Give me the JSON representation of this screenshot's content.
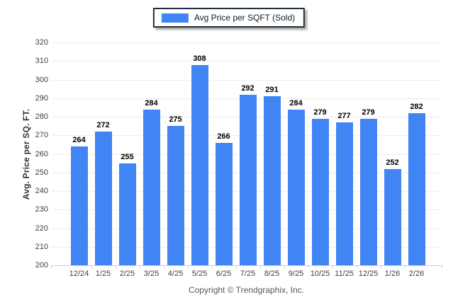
{
  "legend": {
    "label": "Avg Price per SQFT (Sold)",
    "swatch_color": "#4184f4",
    "swatch_icon": "legend-color-swatch"
  },
  "y_axis": {
    "title": "Avg. Price per SQ. FT."
  },
  "footer": {
    "copyright": "Copyright © Trendgraphix, Inc."
  },
  "colors": {
    "bar": "#4184f4",
    "grid": "#ededed",
    "axis_line": "#d0d0d0",
    "tick_text": "#404040",
    "value_text": "#000000",
    "legend_border": "#20303c",
    "copyright_text": "#595959"
  },
  "chart_data": {
    "type": "bar",
    "title": "",
    "series_name": "Avg Price per SQFT (Sold)",
    "categories": [
      "12/24",
      "1/25",
      "2/25",
      "3/25",
      "4/25",
      "5/25",
      "6/25",
      "7/25",
      "8/25",
      "9/25",
      "10/25",
      "11/25",
      "12/25",
      "1/26",
      "2/26"
    ],
    "values": [
      264,
      272,
      255,
      284,
      275,
      308,
      266,
      292,
      291,
      284,
      279,
      277,
      279,
      252,
      282
    ],
    "data_labels_shown": true,
    "xlabel": "",
    "ylabel": "Avg. Price per SQ. FT.",
    "ylim": [
      200,
      320
    ],
    "yticks": [
      200,
      210,
      220,
      230,
      240,
      250,
      260,
      270,
      280,
      290,
      300,
      310,
      320
    ],
    "ytick_step": 10,
    "grid": true,
    "legend_position": "top-center",
    "bar_color": "#4184f4"
  }
}
